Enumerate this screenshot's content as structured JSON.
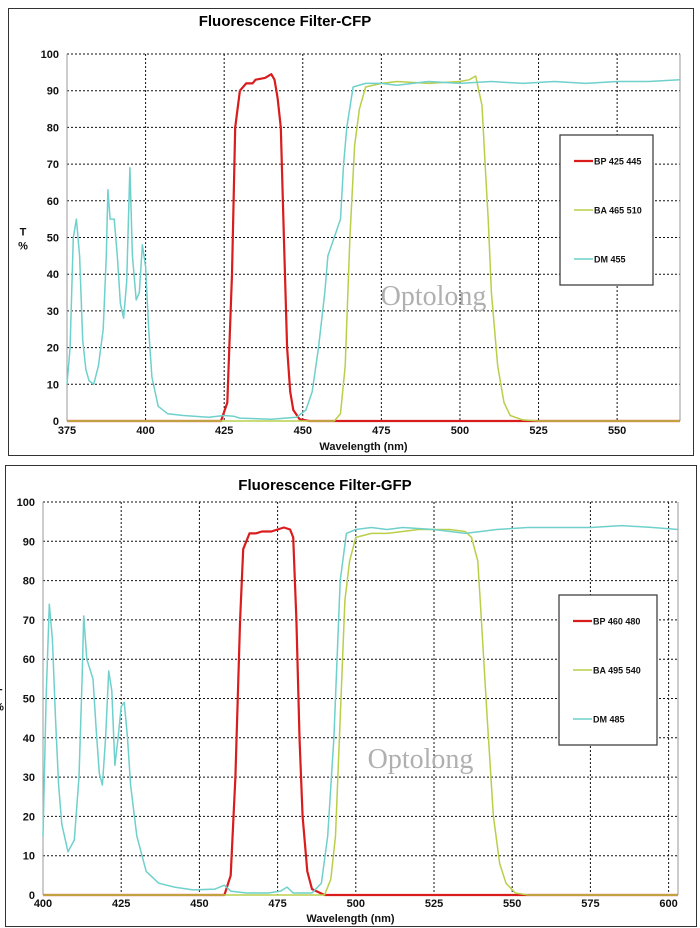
{
  "watermark": "Optolong",
  "colors": {
    "bp": "#d91c1c",
    "ba": "#b9cf4a",
    "dm": "#6fd0cc"
  },
  "chart_data": [
    {
      "type": "line",
      "title": "Fluorescence Filter-CFP",
      "xlabel": "Wavelength (nm)",
      "ylabel": [
        "T",
        "%"
      ],
      "xlim": [
        375,
        570
      ],
      "ylim": [
        0,
        100
      ],
      "xticks": [
        375,
        400,
        425,
        450,
        475,
        500,
        525,
        550
      ],
      "yticks": [
        0,
        10,
        20,
        30,
        40,
        50,
        60,
        70,
        80,
        90,
        100
      ],
      "grid": true,
      "legend": "right",
      "series": [
        {
          "name": "BP 425 445",
          "color": "#d91c1c",
          "points": [
            [
              375,
              0
            ],
            [
              424,
              0
            ],
            [
              426,
              5
            ],
            [
              427.5,
              40
            ],
            [
              428.5,
              80
            ],
            [
              430,
              90
            ],
            [
              432,
              92
            ],
            [
              434,
              92
            ],
            [
              435,
              93
            ],
            [
              438,
              93.5
            ],
            [
              440,
              94.5
            ],
            [
              441,
              93
            ],
            [
              442,
              88
            ],
            [
              443,
              80
            ],
            [
              444,
              50
            ],
            [
              445,
              20
            ],
            [
              446,
              8
            ],
            [
              447,
              3
            ],
            [
              449,
              0.5
            ],
            [
              452,
              0
            ],
            [
              570,
              0
            ]
          ]
        },
        {
          "name": "BA 465 510",
          "color": "#b9cf4a",
          "points": [
            [
              375,
              0
            ],
            [
              460,
              0
            ],
            [
              462,
              2
            ],
            [
              463.5,
              15
            ],
            [
              465,
              50
            ],
            [
              466.5,
              75
            ],
            [
              468,
              85
            ],
            [
              470,
              91
            ],
            [
              475,
              92
            ],
            [
              480,
              92.5
            ],
            [
              490,
              92
            ],
            [
              500,
              92.5
            ],
            [
              503,
              93
            ],
            [
              505,
              94
            ],
            [
              506,
              90
            ],
            [
              507,
              86
            ],
            [
              508,
              70
            ],
            [
              509,
              55
            ],
            [
              510,
              35
            ],
            [
              512,
              15
            ],
            [
              514,
              5
            ],
            [
              516,
              1.5
            ],
            [
              520,
              0.3
            ],
            [
              525,
              0
            ],
            [
              570,
              0
            ]
          ]
        },
        {
          "name": "DM 455",
          "color": "#6fd0cc",
          "points": [
            [
              375,
              10
            ],
            [
              376,
              20
            ],
            [
              377,
              50
            ],
            [
              378,
              55
            ],
            [
              379,
              45
            ],
            [
              380,
              22
            ],
            [
              381,
              14
            ],
            [
              382,
              11
            ],
            [
              383.5,
              10
            ],
            [
              385,
              15
            ],
            [
              386.5,
              25
            ],
            [
              387.5,
              45
            ],
            [
              388,
              63
            ],
            [
              388.7,
              55
            ],
            [
              390,
              55
            ],
            [
              391,
              45
            ],
            [
              392,
              32
            ],
            [
              393,
              28
            ],
            [
              394,
              38
            ],
            [
              395,
              69
            ],
            [
              395.8,
              45
            ],
            [
              397,
              33
            ],
            [
              398,
              35
            ],
            [
              399,
              48
            ],
            [
              400,
              42
            ],
            [
              401,
              25
            ],
            [
              402,
              12
            ],
            [
              404,
              4
            ],
            [
              407,
              2
            ],
            [
              412,
              1.5
            ],
            [
              420,
              1
            ],
            [
              425,
              1.5
            ],
            [
              428,
              1.3
            ],
            [
              430,
              0.8
            ],
            [
              440,
              0.5
            ],
            [
              448,
              1
            ],
            [
              451,
              3
            ],
            [
              453,
              8
            ],
            [
              455,
              20
            ],
            [
              457,
              35
            ],
            [
              458,
              45
            ],
            [
              460,
              50
            ],
            [
              462,
              55
            ],
            [
              463,
              70
            ],
            [
              464,
              80
            ],
            [
              466,
              91
            ],
            [
              470,
              92
            ],
            [
              475,
              92
            ],
            [
              480,
              91.5
            ],
            [
              490,
              92.5
            ],
            [
              500,
              92
            ],
            [
              510,
              92.5
            ],
            [
              520,
              92
            ],
            [
              530,
              92.5
            ],
            [
              540,
              92
            ],
            [
              550,
              92.5
            ],
            [
              560,
              92.5
            ],
            [
              570,
              93
            ]
          ]
        }
      ]
    },
    {
      "type": "line",
      "title": "Fluorescence Filter-GFP",
      "xlabel": "Wavelength (nm)",
      "ylabel": [
        "T",
        "%"
      ],
      "xlim": [
        400,
        603
      ],
      "ylim": [
        0,
        100
      ],
      "xticks": [
        400,
        425,
        450,
        475,
        500,
        525,
        550,
        575,
        600
      ],
      "yticks": [
        0,
        10,
        20,
        30,
        40,
        50,
        60,
        70,
        80,
        90,
        100
      ],
      "grid": true,
      "legend": "right",
      "series": [
        {
          "name": "BP 460 480",
          "color": "#d91c1c",
          "points": [
            [
              400,
              0
            ],
            [
              458,
              0
            ],
            [
              460,
              5
            ],
            [
              461.5,
              30
            ],
            [
              463,
              70
            ],
            [
              464,
              88
            ],
            [
              466,
              92
            ],
            [
              468,
              92
            ],
            [
              470,
              92.5
            ],
            [
              473,
              92.5
            ],
            [
              475,
              93
            ],
            [
              477,
              93.5
            ],
            [
              479,
              93
            ],
            [
              480,
              91
            ],
            [
              481,
              70
            ],
            [
              482,
              40
            ],
            [
              483,
              20
            ],
            [
              484.5,
              6
            ],
            [
              486,
              1.5
            ],
            [
              490,
              0
            ],
            [
              603,
              0
            ]
          ]
        },
        {
          "name": "BA 495 540",
          "color": "#b9cf4a",
          "points": [
            [
              400,
              0
            ],
            [
              490,
              0
            ],
            [
              492,
              4
            ],
            [
              493.5,
              15
            ],
            [
              495,
              45
            ],
            [
              496.5,
              75
            ],
            [
              498,
              85
            ],
            [
              500,
              91
            ],
            [
              505,
              92
            ],
            [
              510,
              92
            ],
            [
              515,
              92.5
            ],
            [
              520,
              93
            ],
            [
              530,
              93
            ],
            [
              535,
              92.5
            ],
            [
              537,
              91
            ],
            [
              539,
              85
            ],
            [
              540,
              72
            ],
            [
              542,
              45
            ],
            [
              544,
              20
            ],
            [
              546,
              8
            ],
            [
              548,
              3
            ],
            [
              551,
              0.5
            ],
            [
              555,
              0
            ],
            [
              603,
              0
            ]
          ]
        },
        {
          "name": "DM 485",
          "color": "#6fd0cc",
          "points": [
            [
              400,
              15
            ],
            [
              401,
              50
            ],
            [
              402,
              74
            ],
            [
              403,
              65
            ],
            [
              404,
              45
            ],
            [
              405,
              28
            ],
            [
              406,
              18
            ],
            [
              408,
              11
            ],
            [
              410,
              14
            ],
            [
              411.5,
              30
            ],
            [
              412.5,
              55
            ],
            [
              413,
              71
            ],
            [
              414,
              60
            ],
            [
              416,
              55
            ],
            [
              417,
              42
            ],
            [
              418,
              31
            ],
            [
              419,
              28
            ],
            [
              420,
              40
            ],
            [
              421,
              57
            ],
            [
              422,
              52
            ],
            [
              423,
              33
            ],
            [
              424,
              40
            ],
            [
              425,
              48
            ],
            [
              426,
              49
            ],
            [
              427,
              40
            ],
            [
              428,
              28
            ],
            [
              430,
              15
            ],
            [
              433,
              6
            ],
            [
              437,
              3
            ],
            [
              442,
              2
            ],
            [
              448,
              1.3
            ],
            [
              455,
              1.5
            ],
            [
              458,
              2.5
            ],
            [
              460,
              1
            ],
            [
              465,
              0.5
            ],
            [
              472,
              0.5
            ],
            [
              476,
              1
            ],
            [
              478,
              2
            ],
            [
              480,
              0.5
            ],
            [
              486,
              0.5
            ],
            [
              489,
              3
            ],
            [
              491,
              15
            ],
            [
              493,
              40
            ],
            [
              495,
              80
            ],
            [
              497,
              92
            ],
            [
              500,
              93
            ],
            [
              505,
              93.5
            ],
            [
              510,
              93
            ],
            [
              515,
              93.5
            ],
            [
              525,
              93
            ],
            [
              535,
              92
            ],
            [
              540,
              92.5
            ],
            [
              545,
              93
            ],
            [
              555,
              93.5
            ],
            [
              565,
              93.5
            ],
            [
              575,
              93.5
            ],
            [
              585,
              94
            ],
            [
              595,
              93.5
            ],
            [
              603,
              93
            ]
          ]
        }
      ]
    }
  ]
}
